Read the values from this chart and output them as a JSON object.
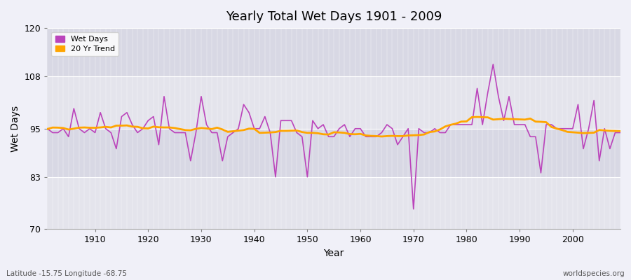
{
  "title": "Yearly Total Wet Days 1901 - 2009",
  "xlabel": "Year",
  "ylabel": "Wet Days",
  "footnote_left": "Latitude -15.75 Longitude -68.75",
  "footnote_right": "worldspecies.org",
  "ylim": [
    70,
    120
  ],
  "yticks": [
    70,
    83,
    95,
    108,
    120
  ],
  "xlim": [
    1901,
    2009
  ],
  "xticks": [
    1910,
    1920,
    1930,
    1940,
    1950,
    1960,
    1970,
    1980,
    1990,
    2000
  ],
  "line_color": "#bb44bb",
  "trend_color": "#ffa500",
  "bg_color": "#f0f0f8",
  "band_color1": "#e8e8f0",
  "band_color2": "#d8d8e8",
  "legend_wet": "Wet Days",
  "legend_trend": "20 Yr Trend",
  "wet_days": [
    95,
    94,
    94,
    95,
    93,
    100,
    95,
    94,
    95,
    94,
    99,
    95,
    94,
    90,
    98,
    99,
    96,
    94,
    95,
    97,
    98,
    91,
    103,
    95,
    94,
    94,
    94,
    87,
    94,
    103,
    96,
    94,
    94,
    87,
    93,
    94,
    95,
    101,
    99,
    95,
    95,
    98,
    94,
    83,
    97,
    97,
    97,
    94,
    93,
    83,
    97,
    95,
    96,
    93,
    93,
    95,
    96,
    93,
    95,
    95,
    93,
    93,
    93,
    94,
    96,
    95,
    91,
    93,
    95,
    75,
    95,
    94,
    94,
    95,
    94,
    94,
    96,
    96,
    96,
    96,
    96,
    105,
    96,
    104,
    111,
    103,
    97,
    103,
    96,
    96,
    96,
    93,
    93,
    84,
    96,
    96,
    95,
    95,
    95,
    95,
    101,
    90,
    95,
    102,
    87,
    95,
    90,
    94,
    94
  ],
  "years": [
    1901,
    1902,
    1903,
    1904,
    1905,
    1906,
    1907,
    1908,
    1909,
    1910,
    1911,
    1912,
    1913,
    1914,
    1915,
    1916,
    1917,
    1918,
    1919,
    1920,
    1921,
    1922,
    1923,
    1924,
    1925,
    1926,
    1927,
    1928,
    1929,
    1930,
    1931,
    1932,
    1933,
    1934,
    1935,
    1936,
    1937,
    1938,
    1939,
    1940,
    1941,
    1942,
    1943,
    1944,
    1945,
    1946,
    1947,
    1948,
    1949,
    1950,
    1951,
    1952,
    1953,
    1954,
    1955,
    1956,
    1957,
    1958,
    1959,
    1960,
    1961,
    1962,
    1963,
    1964,
    1965,
    1966,
    1967,
    1968,
    1969,
    1970,
    1971,
    1972,
    1973,
    1974,
    1975,
    1976,
    1977,
    1978,
    1979,
    1980,
    1981,
    1982,
    1983,
    1984,
    1985,
    1986,
    1987,
    1988,
    1989,
    1990,
    1991,
    1992,
    1993,
    1994,
    1995,
    1996,
    1997,
    1998,
    1999,
    2000,
    2001,
    2002,
    2003,
    2004,
    2005,
    2006,
    2007,
    2008,
    2009
  ],
  "band_ranges": [
    [
      70,
      83
    ],
    [
      83,
      95
    ],
    [
      95,
      108
    ],
    [
      108,
      120
    ]
  ],
  "band_colors": [
    "#e0e0e8",
    "#d8d8e4",
    "#e0e0e8",
    "#d8d8e4"
  ]
}
